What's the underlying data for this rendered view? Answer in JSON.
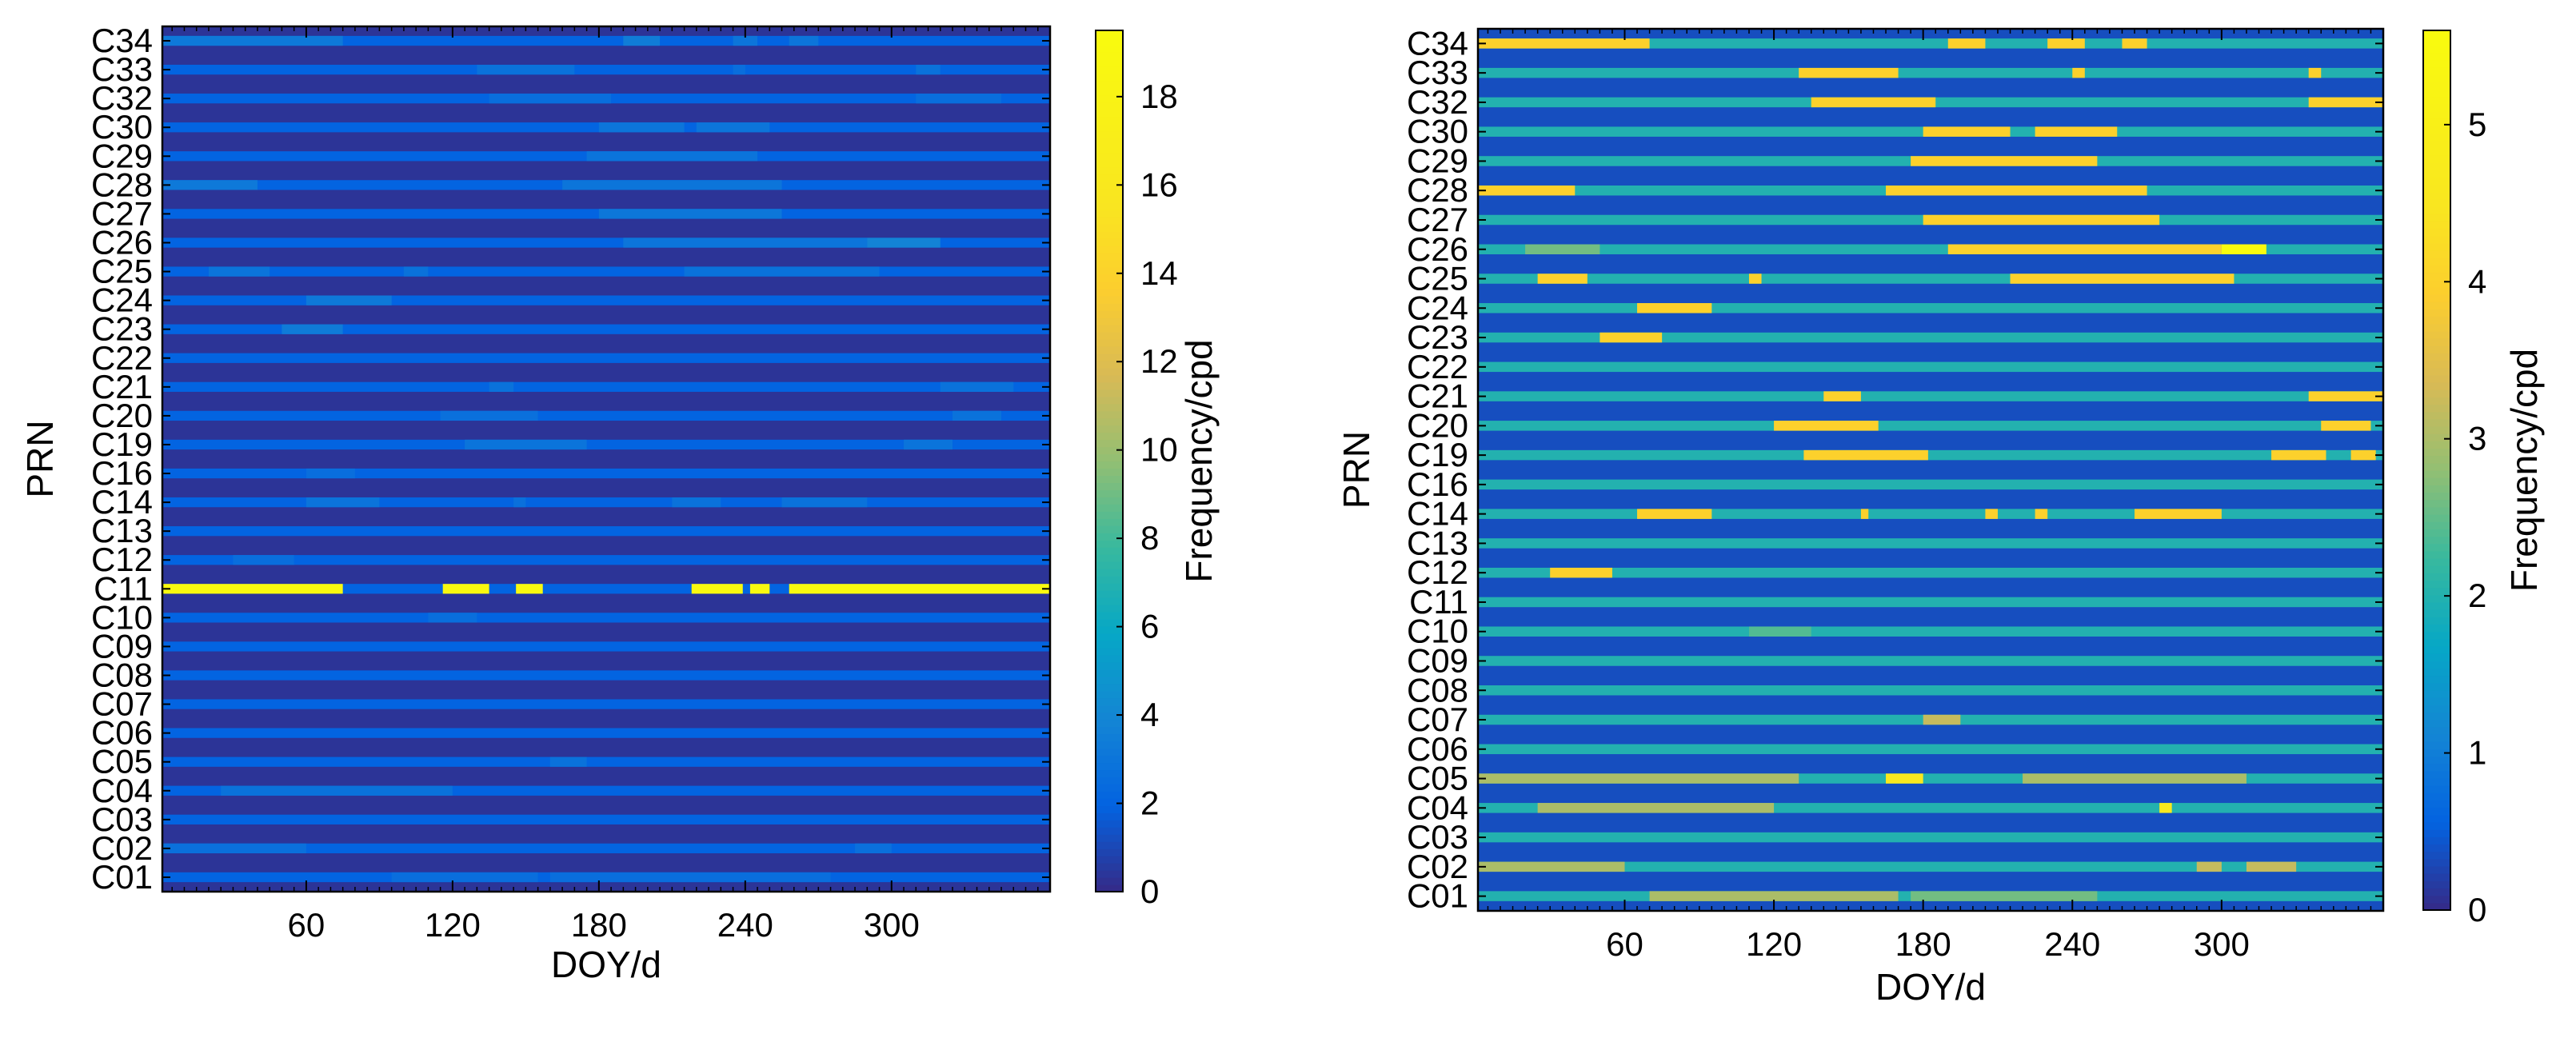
{
  "chart_data": [
    {
      "type": "heatmap",
      "title": "",
      "xlabel": "DOY/d",
      "ylabel": "PRN",
      "xlim": [
        1,
        365
      ],
      "xticks": [
        60,
        120,
        180,
        240,
        300
      ],
      "colorbar": {
        "label": "Frequency/cpd",
        "range": [
          0,
          19.5
        ],
        "ticks": [
          0,
          2,
          4,
          6,
          8,
          10,
          12,
          14,
          16,
          18
        ]
      },
      "prns": [
        "C01",
        "C02",
        "C03",
        "C04",
        "C05",
        "C06",
        "C07",
        "C08",
        "C09",
        "C10",
        "C11",
        "C12",
        "C13",
        "C14",
        "C16",
        "C19",
        "C20",
        "C21",
        "C22",
        "C23",
        "C24",
        "C25",
        "C26",
        "C27",
        "C28",
        "C29",
        "C30",
        "C32",
        "C33",
        "C34"
      ],
      "base_value": 2.0,
      "segments": {
        "C34": [
          [
            1,
            75,
            3.2
          ],
          [
            190,
            205,
            3.4
          ],
          [
            235,
            245,
            3.0
          ],
          [
            258,
            270,
            3.0
          ]
        ],
        "C33": [
          [
            130,
            170,
            2.8
          ],
          [
            235,
            240,
            2.6
          ],
          [
            310,
            320,
            2.8
          ]
        ],
        "C32": [
          [
            135,
            185,
            2.6
          ],
          [
            310,
            345,
            2.6
          ]
        ],
        "C30": [
          [
            180,
            215,
            3.0
          ],
          [
            220,
            250,
            3.0
          ]
        ],
        "C29": [
          [
            175,
            245,
            2.9
          ]
        ],
        "C28": [
          [
            1,
            40,
            3.2
          ],
          [
            165,
            255,
            3.0
          ]
        ],
        "C27": [
          [
            180,
            255,
            3.1
          ]
        ],
        "C26": [
          [
            190,
            290,
            3.0
          ],
          [
            290,
            320,
            3.8
          ]
        ],
        "C25": [
          [
            20,
            45,
            2.9
          ],
          [
            100,
            110,
            2.8
          ],
          [
            215,
            295,
            2.8
          ]
        ],
        "C24": [
          [
            60,
            95,
            3.2
          ]
        ],
        "C23": [
          [
            50,
            75,
            3.3
          ]
        ],
        "C21": [
          [
            135,
            145,
            2.8
          ],
          [
            320,
            350,
            2.8
          ]
        ],
        "C20": [
          [
            115,
            155,
            2.7
          ],
          [
            325,
            345,
            2.8
          ]
        ],
        "C19": [
          [
            125,
            175,
            2.9
          ],
          [
            305,
            325,
            2.9
          ]
        ],
        "C16": [
          [
            60,
            80,
            2.6
          ]
        ],
        "C14": [
          [
            60,
            90,
            2.9
          ],
          [
            145,
            150,
            2.7
          ],
          [
            210,
            230,
            2.8
          ],
          [
            255,
            290,
            2.8
          ]
        ],
        "C12": [
          [
            30,
            55,
            2.6
          ]
        ],
        "C11": [
          [
            1,
            75,
            19.2
          ],
          [
            116,
            135,
            19.2
          ],
          [
            146,
            157,
            19.2
          ],
          [
            218,
            239,
            19.2
          ],
          [
            242,
            250,
            19.2
          ],
          [
            258,
            365,
            19.2
          ]
        ],
        "C10": [
          [
            110,
            130,
            2.6
          ]
        ],
        "C05": [
          [
            160,
            175,
            2.8
          ]
        ],
        "C04": [
          [
            25,
            120,
            2.8
          ]
        ],
        "C02": [
          [
            1,
            60,
            2.7
          ],
          [
            285,
            300,
            2.7
          ]
        ],
        "C01": [
          [
            95,
            155,
            2.6
          ],
          [
            160,
            275,
            2.6
          ]
        ]
      }
    },
    {
      "type": "heatmap",
      "title": "",
      "xlabel": "DOY/d",
      "ylabel": "PRN",
      "xlim": [
        1,
        365
      ],
      "xticks": [
        60,
        120,
        180,
        240,
        300
      ],
      "colorbar": {
        "label": "Frequency/cpd",
        "range": [
          0,
          5.6
        ],
        "ticks": [
          0,
          1,
          2,
          3,
          4,
          5
        ]
      },
      "prns": [
        "C01",
        "C02",
        "C03",
        "C04",
        "C05",
        "C06",
        "C07",
        "C08",
        "C09",
        "C10",
        "C11",
        "C12",
        "C13",
        "C14",
        "C16",
        "C19",
        "C20",
        "C21",
        "C22",
        "C23",
        "C24",
        "C25",
        "C26",
        "C27",
        "C28",
        "C29",
        "C30",
        "C32",
        "C33",
        "C34"
      ],
      "base_value": 2.0,
      "segments": {
        "C34": [
          [
            1,
            70,
            4.0
          ],
          [
            190,
            205,
            4.0
          ],
          [
            230,
            245,
            4.0
          ],
          [
            260,
            270,
            4.0
          ]
        ],
        "C33": [
          [
            130,
            170,
            4.0
          ],
          [
            240,
            245,
            4.0
          ],
          [
            335,
            340,
            4.0
          ]
        ],
        "C32": [
          [
            135,
            185,
            4.0
          ],
          [
            335,
            365,
            4.0
          ]
        ],
        "C30": [
          [
            180,
            215,
            4.0
          ],
          [
            225,
            258,
            4.0
          ]
        ],
        "C29": [
          [
            175,
            250,
            4.0
          ]
        ],
        "C28": [
          [
            1,
            40,
            4.0
          ],
          [
            165,
            270,
            4.0
          ]
        ],
        "C27": [
          [
            180,
            275,
            4.0
          ]
        ],
        "C26": [
          [
            190,
            300,
            4.0
          ],
          [
            300,
            318,
            5.6
          ],
          [
            20,
            50,
            2.6
          ]
        ],
        "C25": [
          [
            25,
            45,
            4.0
          ],
          [
            110,
            115,
            4.0
          ],
          [
            215,
            305,
            4.0
          ]
        ],
        "C24": [
          [
            65,
            95,
            4.0
          ]
        ],
        "C23": [
          [
            50,
            75,
            4.0
          ]
        ],
        "C21": [
          [
            140,
            155,
            4.0
          ],
          [
            335,
            365,
            4.0
          ]
        ],
        "C20": [
          [
            120,
            162,
            4.0
          ],
          [
            340,
            360,
            4.0
          ]
        ],
        "C19": [
          [
            132,
            182,
            4.0
          ],
          [
            320,
            342,
            4.0
          ],
          [
            352,
            362,
            4.0
          ]
        ],
        "C14": [
          [
            65,
            95,
            4.0
          ],
          [
            155,
            158,
            4.0
          ],
          [
            205,
            210,
            4.0
          ],
          [
            225,
            230,
            4.0
          ],
          [
            265,
            300,
            4.0
          ]
        ],
        "C12": [
          [
            30,
            55,
            4.0
          ]
        ],
        "C10": [
          [
            110,
            135,
            2.4
          ]
        ],
        "C07": [
          [
            180,
            195,
            3.2
          ]
        ],
        "C05": [
          [
            1,
            130,
            3.0
          ],
          [
            165,
            180,
            4.6
          ],
          [
            220,
            310,
            3.0
          ]
        ],
        "C04": [
          [
            25,
            120,
            3.0
          ],
          [
            275,
            280,
            4.6
          ]
        ],
        "C02": [
          [
            1,
            60,
            3.0
          ],
          [
            290,
            300,
            3.2
          ],
          [
            310,
            330,
            3.2
          ]
        ],
        "C01": [
          [
            70,
            170,
            3.0
          ],
          [
            175,
            250,
            2.6
          ]
        ]
      }
    }
  ]
}
